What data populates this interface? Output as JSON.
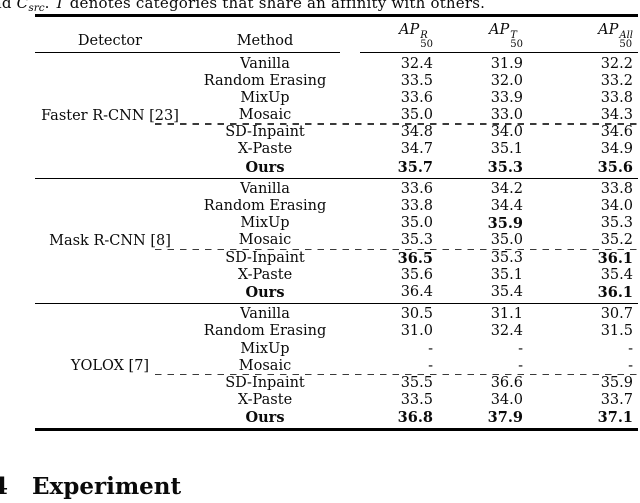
{
  "caption": {
    "segments": [
      {
        "text": "nd "
      },
      {
        "text": "C"
      },
      {
        "text": "src"
      },
      {
        "text": ". "
      },
      {
        "text": "T"
      },
      {
        "text": " denotes categories that share an affinity with others."
      }
    ]
  },
  "table": {
    "headers": {
      "detector": "Detector",
      "method": "Method",
      "ap_columns": [
        {
          "base": "AP",
          "sup": "R",
          "sub": "50"
        },
        {
          "base": "AP",
          "sup": "T",
          "sub": "50"
        },
        {
          "base": "AP",
          "sup": "All",
          "sub": "50"
        }
      ]
    },
    "sections": [
      {
        "detector": "Faster R-CNN [23]",
        "rows": [
          {
            "method": "Vanilla",
            "values": [
              "32.4",
              "31.9",
              "32.2"
            ],
            "bold": [
              false,
              false,
              false
            ],
            "bold_method": false,
            "dashed_above": false
          },
          {
            "method": "Random Erasing",
            "values": [
              "33.5",
              "32.0",
              "33.2"
            ],
            "bold": [
              false,
              false,
              false
            ],
            "bold_method": false,
            "dashed_above": false
          },
          {
            "method": "MixUp",
            "values": [
              "33.6",
              "33.9",
              "33.8"
            ],
            "bold": [
              false,
              false,
              false
            ],
            "bold_method": false,
            "dashed_above": false
          },
          {
            "method": "Mosaic",
            "values": [
              "35.0",
              "33.0",
              "34.3"
            ],
            "bold": [
              false,
              false,
              false
            ],
            "bold_method": false,
            "dashed_above": false
          },
          {
            "method": "SD-Inpaint",
            "values": [
              "34.8",
              "34.0",
              "34.6"
            ],
            "bold": [
              false,
              false,
              false
            ],
            "bold_method": false,
            "dashed_above": true
          },
          {
            "method": "X-Paste",
            "values": [
              "34.7",
              "35.1",
              "34.9"
            ],
            "bold": [
              false,
              false,
              false
            ],
            "bold_method": false,
            "dashed_above": false
          },
          {
            "method": "Ours",
            "values": [
              "35.7",
              "35.3",
              "35.6"
            ],
            "bold": [
              true,
              true,
              true
            ],
            "bold_method": true,
            "dashed_above": false
          }
        ]
      },
      {
        "detector": "Mask R-CNN [8]",
        "rows": [
          {
            "method": "Vanilla",
            "values": [
              "33.6",
              "34.2",
              "33.8"
            ],
            "bold": [
              false,
              false,
              false
            ],
            "bold_method": false,
            "dashed_above": false
          },
          {
            "method": "Random Erasing",
            "values": [
              "33.8",
              "34.4",
              "34.0"
            ],
            "bold": [
              false,
              false,
              false
            ],
            "bold_method": false,
            "dashed_above": false
          },
          {
            "method": "MixUp",
            "values": [
              "35.0",
              "35.9",
              "35.3"
            ],
            "bold": [
              false,
              true,
              false
            ],
            "bold_method": false,
            "dashed_above": false
          },
          {
            "method": "Mosaic",
            "values": [
              "35.3",
              "35.0",
              "35.2"
            ],
            "bold": [
              false,
              false,
              false
            ],
            "bold_method": false,
            "dashed_above": false
          },
          {
            "method": "SD-Inpaint",
            "values": [
              "36.5",
              "35.3",
              "36.1"
            ],
            "bold": [
              true,
              false,
              true
            ],
            "bold_method": false,
            "dashed_above": true
          },
          {
            "method": "X-Paste",
            "values": [
              "35.6",
              "35.1",
              "35.4"
            ],
            "bold": [
              false,
              false,
              false
            ],
            "bold_method": false,
            "dashed_above": false
          },
          {
            "method": "Ours",
            "values": [
              "36.4",
              "35.4",
              "36.1"
            ],
            "bold": [
              false,
              false,
              true
            ],
            "bold_method": true,
            "dashed_above": false
          }
        ]
      },
      {
        "detector": "YOLOX [7]",
        "rows": [
          {
            "method": "Vanilla",
            "values": [
              "30.5",
              "31.1",
              "30.7"
            ],
            "bold": [
              false,
              false,
              false
            ],
            "bold_method": false,
            "dashed_above": false
          },
          {
            "method": "Random Erasing",
            "values": [
              "31.0",
              "32.4",
              "31.5"
            ],
            "bold": [
              false,
              false,
              false
            ],
            "bold_method": false,
            "dashed_above": false
          },
          {
            "method": "MixUp",
            "values": [
              "-",
              "-",
              "-"
            ],
            "bold": [
              false,
              false,
              false
            ],
            "bold_method": false,
            "dashed_above": false
          },
          {
            "method": "Mosaic",
            "values": [
              "-",
              "-",
              "-"
            ],
            "bold": [
              false,
              false,
              false
            ],
            "bold_method": false,
            "dashed_above": false
          },
          {
            "method": "SD-Inpaint",
            "values": [
              "35.5",
              "36.6",
              "35.9"
            ],
            "bold": [
              false,
              false,
              false
            ],
            "bold_method": false,
            "dashed_above": true
          },
          {
            "method": "X-Paste",
            "values": [
              "33.5",
              "34.0",
              "33.7"
            ],
            "bold": [
              false,
              false,
              false
            ],
            "bold_method": false,
            "dashed_above": false
          },
          {
            "method": "Ours",
            "values": [
              "36.8",
              "37.9",
              "37.1"
            ],
            "bold": [
              true,
              true,
              true
            ],
            "bold_method": true,
            "dashed_above": false
          }
        ]
      }
    ]
  },
  "section_heading": {
    "number": "4",
    "title": "Experiment"
  },
  "colors": {
    "text": "#0a0a0a",
    "background": "#ffffff",
    "rule": "#000000"
  }
}
